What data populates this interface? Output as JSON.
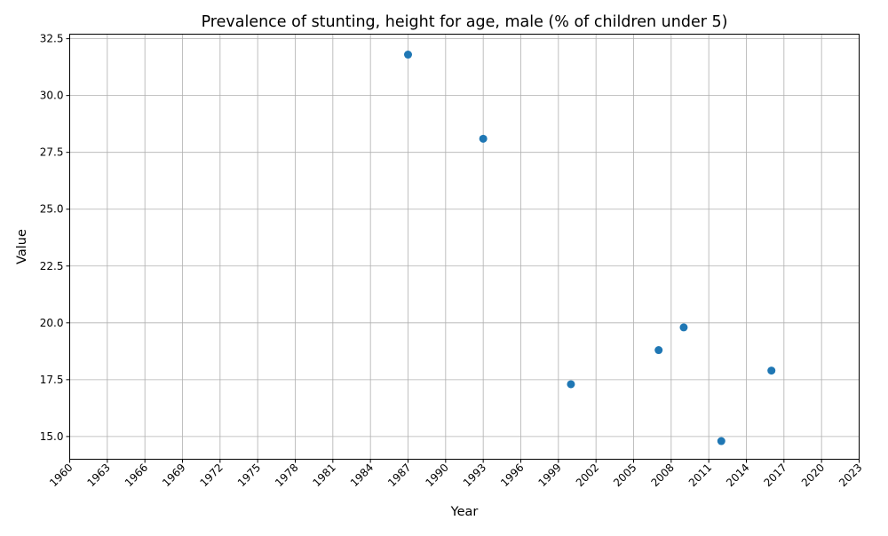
{
  "chart_data": {
    "type": "scatter",
    "title": "Prevalence of stunting, height for age, male (% of children under 5)",
    "xlabel": "Year",
    "ylabel": "Value",
    "xlim": [
      1960,
      2023
    ],
    "ylim": [
      14.0,
      32.7
    ],
    "x_ticks": [
      1960,
      1963,
      1966,
      1969,
      1972,
      1975,
      1978,
      1981,
      1984,
      1987,
      1990,
      1993,
      1996,
      1999,
      2002,
      2005,
      2008,
      2011,
      2014,
      2017,
      2020,
      2023
    ],
    "x_tick_labels": [
      "1960",
      "1963",
      "1966",
      "1969",
      "1972",
      "1975",
      "1978",
      "1981",
      "1984",
      "1987",
      "1990",
      "1993",
      "1996",
      "1999",
      "2002",
      "2005",
      "2008",
      "2011",
      "2014",
      "2017",
      "2020",
      "2023"
    ],
    "y_ticks": [
      15.0,
      17.5,
      20.0,
      22.5,
      25.0,
      27.5,
      30.0,
      32.5
    ],
    "y_tick_labels": [
      "15.0",
      "17.5",
      "20.0",
      "22.5",
      "25.0",
      "27.5",
      "30.0",
      "32.5"
    ],
    "grid": true,
    "series": [
      {
        "color": "#1f77b4",
        "points": [
          {
            "x": 1987,
            "y": 31.8
          },
          {
            "x": 1993,
            "y": 28.1
          },
          {
            "x": 2000,
            "y": 17.3
          },
          {
            "x": 2007,
            "y": 18.8
          },
          {
            "x": 2009,
            "y": 19.8
          },
          {
            "x": 2012,
            "y": 14.8
          },
          {
            "x": 2016,
            "y": 17.9
          }
        ]
      }
    ]
  }
}
